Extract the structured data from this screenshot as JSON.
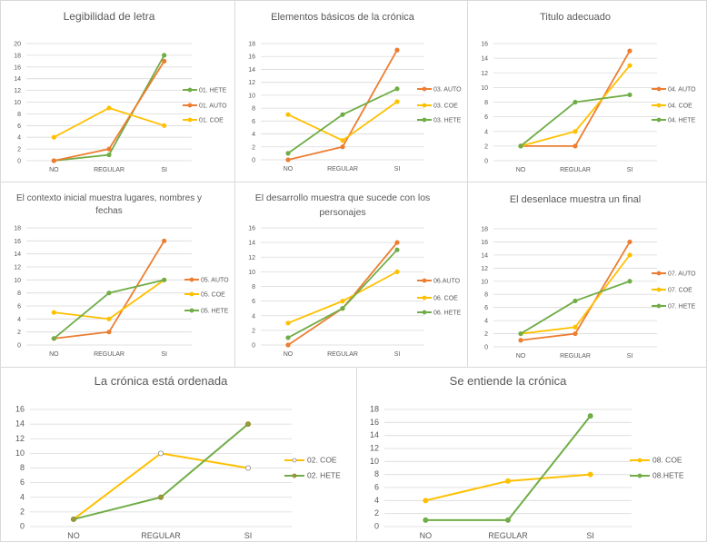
{
  "colors": {
    "AUTO": "#ed7d31",
    "COE": "#ffc000",
    "HETE": "#70ad47"
  },
  "chart_data": [
    {
      "type": "line",
      "title": "Legibilidad de letra",
      "categories": [
        "NO",
        "REGULAR",
        "SI"
      ],
      "ylim": [
        0,
        20
      ],
      "ystep": 2,
      "grid": true,
      "legend": "right",
      "series": [
        {
          "name": "01. HETE",
          "key": "HETE",
          "values": [
            0,
            1,
            18
          ]
        },
        {
          "name": "01. AUTO",
          "key": "AUTO",
          "values": [
            0,
            2,
            17
          ]
        },
        {
          "name": "01. COE",
          "key": "COE",
          "values": [
            4,
            9,
            6
          ]
        }
      ]
    },
    {
      "type": "line",
      "title": "Elementos básicos de la crónica",
      "categories": [
        "NO",
        "REGULAR",
        "SI"
      ],
      "ylim": [
        0,
        18
      ],
      "ystep": 2,
      "grid": true,
      "legend": "right",
      "series": [
        {
          "name": "03. AUTO",
          "key": "AUTO",
          "values": [
            0,
            2,
            17
          ]
        },
        {
          "name": "03. COE",
          "key": "COE",
          "values": [
            7,
            3,
            9
          ]
        },
        {
          "name": "03. HETE",
          "key": "HETE",
          "values": [
            1,
            7,
            11
          ]
        }
      ]
    },
    {
      "type": "line",
      "title": "Titulo adecuado",
      "categories": [
        "NO",
        "REGULAR",
        "SI"
      ],
      "ylim": [
        0,
        16
      ],
      "ystep": 2,
      "grid": true,
      "legend": "right",
      "series": [
        {
          "name": "04. AUTO",
          "key": "AUTO",
          "values": [
            2,
            2,
            15
          ]
        },
        {
          "name": "04. COE",
          "key": "COE",
          "values": [
            2,
            4,
            13
          ]
        },
        {
          "name": "04. HETE",
          "key": "HETE",
          "values": [
            2,
            8,
            9
          ]
        }
      ]
    },
    {
      "type": "line",
      "title": [
        "El contexto inicial muestra lugares, nombres y",
        "fechas"
      ],
      "categories": [
        "NO",
        "REGULAR",
        "SI"
      ],
      "ylim": [
        0,
        18
      ],
      "ystep": 2,
      "grid": true,
      "legend": "right",
      "series": [
        {
          "name": "05. AUTO",
          "key": "AUTO",
          "values": [
            1,
            2,
            16
          ]
        },
        {
          "name": "05. COE",
          "key": "COE",
          "values": [
            5,
            4,
            10
          ]
        },
        {
          "name": "05. HETE",
          "key": "HETE",
          "values": [
            1,
            8,
            10
          ]
        }
      ]
    },
    {
      "type": "line",
      "title": [
        "El desarrollo muestra que sucede con los",
        "personajes"
      ],
      "categories": [
        "NO",
        "REGULAR",
        "SI"
      ],
      "ylim": [
        0,
        16
      ],
      "ystep": 2,
      "grid": true,
      "legend": "right",
      "series": [
        {
          "name": "06.AUTO",
          "key": "AUTO",
          "values": [
            0,
            5,
            14
          ]
        },
        {
          "name": "06. COE",
          "key": "COE",
          "values": [
            3,
            6,
            10
          ]
        },
        {
          "name": "06. HETE",
          "key": "HETE",
          "values": [
            1,
            5,
            13
          ]
        }
      ]
    },
    {
      "type": "line",
      "title": "El desenlace muestra un final",
      "categories": [
        "NO",
        "REGULAR",
        "SI"
      ],
      "ylim": [
        0,
        18
      ],
      "ystep": 2,
      "grid": true,
      "legend": "right",
      "series": [
        {
          "name": "07. AUTO",
          "key": "AUTO",
          "values": [
            1,
            2,
            16
          ]
        },
        {
          "name": "07. COE",
          "key": "COE",
          "values": [
            2,
            3,
            14
          ]
        },
        {
          "name": "07. HETE",
          "key": "HETE",
          "values": [
            2,
            7,
            10
          ]
        }
      ]
    },
    {
      "type": "line",
      "title": "La crónica está ordenada",
      "categories": [
        "NO",
        "REGULAR",
        "SI"
      ],
      "ylim": [
        0,
        16
      ],
      "ystep": 2,
      "grid": true,
      "legend": "right",
      "series": [
        {
          "name": "02. COE",
          "key": "COE",
          "values": [
            1,
            10,
            8
          ],
          "marker": "hollow"
        },
        {
          "name": "02. HETE",
          "key": "HETE",
          "values": [
            1,
            4,
            14
          ],
          "marker": "olive"
        }
      ]
    },
    {
      "type": "line",
      "title": "Se entiende la crónica",
      "categories": [
        "NO",
        "REGULAR",
        "SI"
      ],
      "ylim": [
        0,
        18
      ],
      "ystep": 2,
      "grid": true,
      "legend": "right",
      "series": [
        {
          "name": "08. COE",
          "key": "COE",
          "values": [
            4,
            7,
            8
          ]
        },
        {
          "name": "08.HETE",
          "key": "HETE",
          "values": [
            1,
            1,
            17
          ]
        }
      ]
    }
  ]
}
